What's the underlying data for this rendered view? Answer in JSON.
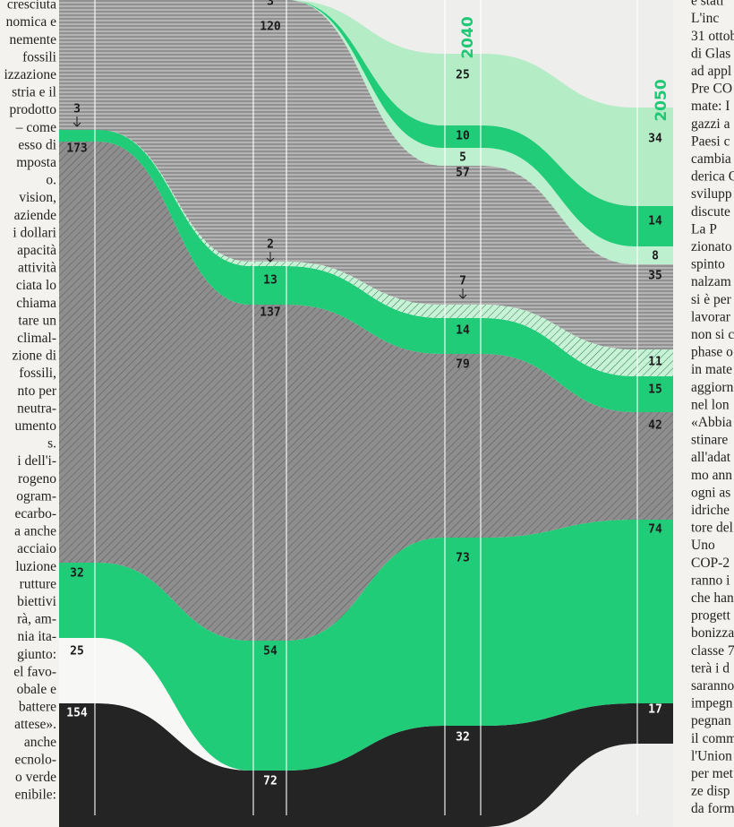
{
  "left_column": {
    "lines": [
      "cresciuta",
      "nomica e",
      "nemente",
      "fossili",
      "izzazione",
      "stria e il",
      "prodotto",
      "– come",
      "esso di",
      "mposta",
      "o.",
      "vision,",
      "aziende",
      "i dollari",
      "apacità",
      "attività",
      "ciata lo",
      "chiama",
      "tare un",
      "climal-",
      "zione di",
      "fossili,",
      "nto per",
      "neutra-",
      "umento",
      "s.",
      "i dell'i-",
      "rogeno",
      "ogram-",
      "ecarbo-",
      "a anche",
      "acciaio",
      "luzione",
      "rutture",
      "biettivi",
      "rà, am-",
      "nia ita-",
      "giunto:",
      "el favo-",
      "obale e",
      "battere",
      "attese».",
      "anche",
      "ecnolo-",
      "o verde",
      "enibile:"
    ]
  },
  "right_column": {
    "lines": [
      "e stati",
      "L'inc",
      "31 ottob",
      "di Glas",
      "ad appl",
      "Pre CO",
      "mate: I",
      "gazzi a",
      "Paesi c",
      "cambia",
      "derica C",
      "svilupp",
      "discute",
      "La P",
      "zionato",
      "spinto",
      "nalzam",
      "si è per",
      "lavorar",
      "non si c",
      "phase o",
      "in mate",
      "aggiorn",
      "nel lon",
      "«Abbia",
      "stinare",
      "all'adat",
      "mo ann",
      "ogni as",
      "idriche",
      "tore del",
      "Uno",
      "COP-2",
      "ranno i",
      "che han",
      "progett",
      "bonizza",
      "classe 7",
      "terà i d",
      "saranno",
      "impegn",
      "pegnan",
      "il comm",
      "l'Union",
      "per met",
      "ze disp",
      "da form"
    ]
  },
  "chart": {
    "years": [
      "2040",
      "2050"
    ],
    "columns": [
      [
        3,
        173,
        32,
        25,
        154
      ],
      [
        3,
        120,
        2,
        13,
        137,
        54,
        72
      ],
      [
        25,
        10,
        5,
        57,
        7,
        14,
        79,
        73,
        32
      ],
      [
        34,
        14,
        8,
        35,
        11,
        15,
        42,
        74,
        17
      ]
    ]
  }
}
